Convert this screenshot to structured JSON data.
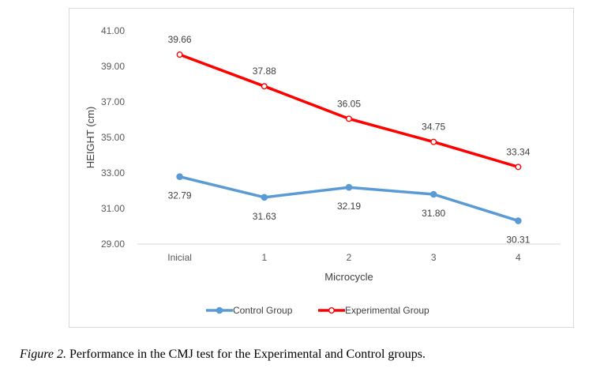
{
  "chart_data": {
    "type": "line",
    "categories": [
      "Inicial",
      "1",
      "2",
      "3",
      "4"
    ],
    "xlabel": "Microcycle",
    "ylabel": "HEIGHT (cm)",
    "ylim": [
      29.0,
      41.0
    ],
    "yticks": [
      "29.00",
      "31.00",
      "33.00",
      "35.00",
      "37.00",
      "39.00",
      "41.00"
    ],
    "grid": false,
    "legend_position": "bottom",
    "series": [
      {
        "name": "Control Group",
        "color": "#5b9bd5",
        "marker": "filled-circle",
        "values": [
          32.79,
          31.63,
          32.19,
          31.8,
          30.31
        ],
        "labels": [
          "32.79",
          "31.63",
          "32.19",
          "31.80",
          "30.31"
        ],
        "label_position": "below"
      },
      {
        "name": "Experimental Group",
        "color": "#ff0000",
        "marker": "hollow-circle",
        "values": [
          39.66,
          37.88,
          36.05,
          34.75,
          33.34
        ],
        "labels": [
          "39.66",
          "37.88",
          "36.05",
          "34.75",
          "33.34"
        ],
        "label_position": "above"
      }
    ]
  },
  "caption": {
    "figure_label": "Figure 2.",
    "text": " Performance in the CMJ test for the Experimental and Control groups."
  }
}
